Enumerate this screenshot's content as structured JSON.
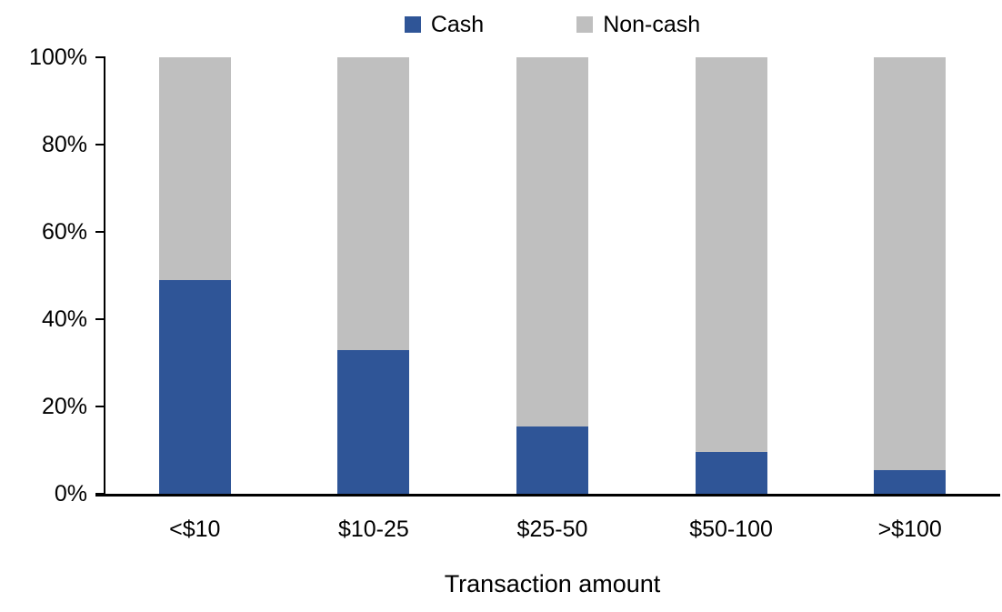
{
  "chart_data": {
    "type": "bar",
    "variant": "stacked-100-percent",
    "title": "",
    "xlabel": "Transaction amount",
    "ylabel": "",
    "categories": [
      "<$10",
      "$10-25",
      "$25-50",
      "$50-100",
      ">$100"
    ],
    "series": [
      {
        "name": "Cash",
        "color": "#2F5597",
        "values": [
          49,
          33,
          15.5,
          9.5,
          5.5
        ]
      },
      {
        "name": "Non-cash",
        "color": "#BFBFBF",
        "values": [
          51,
          67,
          84.5,
          90.5,
          94.5
        ]
      }
    ],
    "ylim": [
      0,
      100
    ],
    "ytick_labels": [
      "0%",
      "20%",
      "40%",
      "60%",
      "80%",
      "100%"
    ],
    "legend_position": "top-center",
    "grid": false,
    "axis_color": "#000000",
    "background_color": "#FFFFFF"
  }
}
